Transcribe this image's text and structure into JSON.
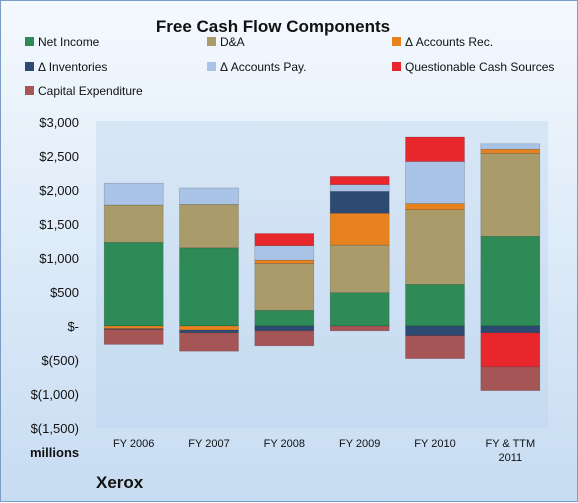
{
  "chart_data": {
    "type": "bar",
    "stacked": true,
    "title": "Free Cash Flow Components",
    "ylabel": "",
    "xlabel": "",
    "unit_label": "millions",
    "brand_label": "Xerox",
    "ylim": [
      -1500,
      3000
    ],
    "yticks": [
      3000,
      2500,
      2000,
      1500,
      1000,
      500,
      0,
      -500,
      -1000,
      -1500
    ],
    "ytick_labels": [
      "$3,000",
      "$2,500",
      "$2,000",
      "$1,500",
      "$1,000",
      "$500",
      "$-",
      "$(500)",
      "$(1,000)",
      "$(1,500)"
    ],
    "categories": [
      "FY 2006",
      "FY 2007",
      "FY 2008",
      "FY 2009",
      "FY 2010",
      "FY & TTM 2011"
    ],
    "legend_position": "top",
    "series": [
      {
        "name": "Net Income",
        "color": "#2e8b57",
        "values": [
          1230,
          1150,
          230,
          490,
          610,
          1320
        ]
      },
      {
        "name": "D&A",
        "color": "#a99b6a",
        "values": [
          550,
          640,
          690,
          700,
          1100,
          1220
        ]
      },
      {
        "name": "Δ Accounts Rec.",
        "color": "#e8821e",
        "values": [
          -40,
          -60,
          50,
          470,
          90,
          60
        ]
      },
      {
        "name": "Δ Inventories",
        "color": "#2c4a72",
        "values": [
          -10,
          -40,
          -70,
          320,
          -140,
          -100
        ]
      },
      {
        "name": "Δ Accounts Pay.",
        "color": "#a9c4e6",
        "values": [
          320,
          240,
          210,
          100,
          620,
          80
        ]
      },
      {
        "name": "Questionable Cash Sources",
        "color": "#e8272c",
        "values": [
          0,
          0,
          180,
          120,
          360,
          -500
        ]
      },
      {
        "name": "Capital Expenditure",
        "color": "#a65556",
        "values": [
          -220,
          -270,
          -220,
          -70,
          -340,
          -350
        ]
      }
    ],
    "grid": false
  }
}
